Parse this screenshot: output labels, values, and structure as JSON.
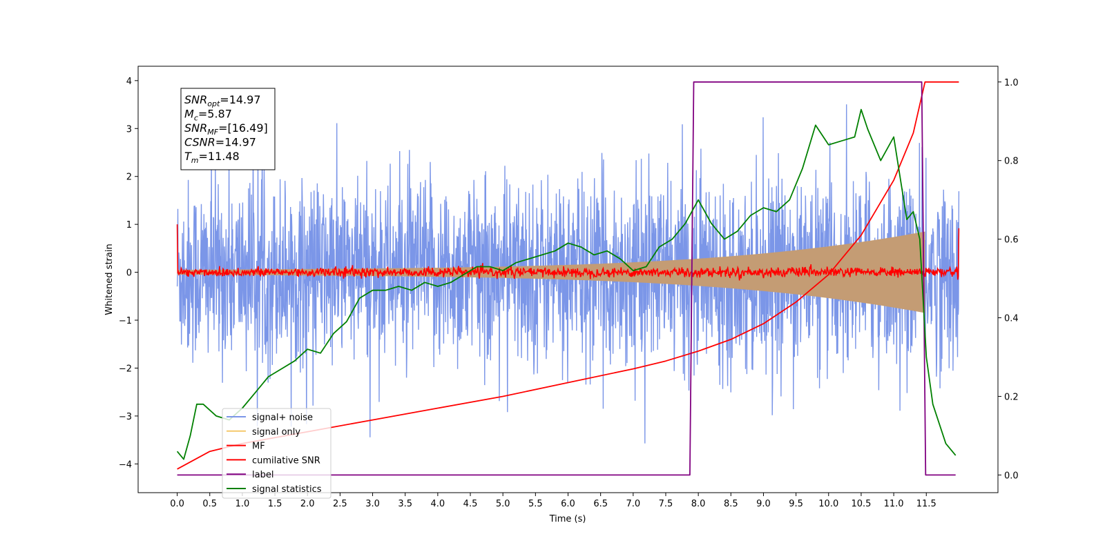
{
  "chart_data": {
    "type": "line",
    "xlabel": "Time (s)",
    "ylabel": "Whitened strain",
    "xlim": [
      -0.6,
      12.6
    ],
    "ylim_left": [
      -4.6,
      4.3
    ],
    "ylim_right": [
      -0.045,
      1.04
    ],
    "x_ticks": [
      "0.0",
      "0.5",
      "1.0",
      "1.5",
      "2.0",
      "2.5",
      "3.0",
      "3.5",
      "4.0",
      "4.5",
      "5.0",
      "5.5",
      "6.0",
      "6.5",
      "7.0",
      "7.5",
      "8.0",
      "8.5",
      "9.0",
      "9.5",
      "10.0",
      "10.5",
      "11.0",
      "11.5"
    ],
    "y_left_ticks": [
      "4",
      "3",
      "2",
      "1",
      "0",
      "−1",
      "−2",
      "−3",
      "−4"
    ],
    "y_right_ticks": [
      "1.0",
      "0.8",
      "0.6",
      "0.4",
      "0.2",
      "0.0"
    ],
    "info_box": [
      {
        "var": "SNR",
        "sub": "opt",
        "val": "=14.97"
      },
      {
        "var": "M",
        "sub": "c",
        "val": "=5.87"
      },
      {
        "var": "SNR",
        "sub": "MF",
        "val": "=[16.49]"
      },
      {
        "var": "CSNR",
        "sub": "",
        "val": "=14.97"
      },
      {
        "var": "T",
        "sub": "m",
        "val": "=11.48"
      }
    ],
    "legend_position": "lower-left",
    "series": [
      {
        "name": "signal+ noise",
        "color": "#7b96e8",
        "axis": "left",
        "kind": "noise",
        "x_range": [
          0.0,
          12.0
        ],
        "amplitude_sigma": 1.0,
        "envelope_peak": 4.0
      },
      {
        "name": "signal only",
        "color": "#f5c86b",
        "axis": "left",
        "kind": "chirp",
        "x_range": [
          0.0,
          11.48
        ],
        "amplitude_start": 0.05,
        "amplitude_end": 0.75
      },
      {
        "name": "MF",
        "color": "#ff0000",
        "axis": "left",
        "kind": "noise",
        "x_range": [
          0.0,
          12.0
        ],
        "amplitude_sigma": 0.05,
        "endpoints": [
          1.0,
          0.92
        ]
      },
      {
        "name": "cumilative SNR",
        "color": "#ff0000",
        "axis": "right",
        "kind": "curve",
        "x": [
          0.0,
          0.5,
          1.0,
          2.0,
          3.0,
          4.0,
          5.0,
          6.0,
          7.0,
          7.5,
          8.0,
          8.5,
          9.0,
          9.5,
          10.0,
          10.5,
          11.0,
          11.3,
          11.48,
          11.6,
          12.0
        ],
        "y": [
          0.015,
          0.06,
          0.08,
          0.11,
          0.14,
          0.17,
          0.2,
          0.235,
          0.27,
          0.29,
          0.315,
          0.345,
          0.385,
          0.44,
          0.51,
          0.61,
          0.75,
          0.87,
          1.0,
          1.0,
          1.0
        ]
      },
      {
        "name": "label",
        "color": "#800080",
        "axis": "right",
        "kind": "step",
        "x": [
          0.0,
          7.87,
          7.93,
          11.43,
          11.49,
          11.95
        ],
        "y": [
          0.0,
          0.0,
          1.0,
          1.0,
          0.0,
          0.0
        ]
      },
      {
        "name": "signal statistics",
        "color": "#008000",
        "axis": "right",
        "kind": "curve",
        "x": [
          0.0,
          0.1,
          0.2,
          0.3,
          0.4,
          0.6,
          0.8,
          1.0,
          1.2,
          1.4,
          1.6,
          1.8,
          2.0,
          2.2,
          2.4,
          2.6,
          2.8,
          3.0,
          3.2,
          3.4,
          3.6,
          3.8,
          4.0,
          4.2,
          4.4,
          4.6,
          4.8,
          5.0,
          5.2,
          5.4,
          5.6,
          5.8,
          6.0,
          6.2,
          6.4,
          6.6,
          6.8,
          7.0,
          7.2,
          7.4,
          7.6,
          7.8,
          8.0,
          8.2,
          8.4,
          8.6,
          8.8,
          9.0,
          9.2,
          9.4,
          9.6,
          9.8,
          10.0,
          10.2,
          10.4,
          10.5,
          10.6,
          10.8,
          11.0,
          11.2,
          11.3,
          11.4,
          11.5,
          11.6,
          11.8,
          11.95
        ],
        "y": [
          0.06,
          0.04,
          0.1,
          0.18,
          0.18,
          0.15,
          0.14,
          0.17,
          0.21,
          0.25,
          0.27,
          0.29,
          0.32,
          0.31,
          0.36,
          0.39,
          0.45,
          0.47,
          0.47,
          0.48,
          0.47,
          0.49,
          0.48,
          0.49,
          0.51,
          0.53,
          0.53,
          0.52,
          0.54,
          0.55,
          0.56,
          0.57,
          0.59,
          0.58,
          0.56,
          0.57,
          0.55,
          0.52,
          0.53,
          0.58,
          0.6,
          0.64,
          0.7,
          0.64,
          0.6,
          0.62,
          0.66,
          0.68,
          0.67,
          0.7,
          0.78,
          0.89,
          0.84,
          0.85,
          0.86,
          0.93,
          0.88,
          0.8,
          0.86,
          0.65,
          0.67,
          0.6,
          0.3,
          0.18,
          0.08,
          0.05
        ]
      }
    ]
  }
}
